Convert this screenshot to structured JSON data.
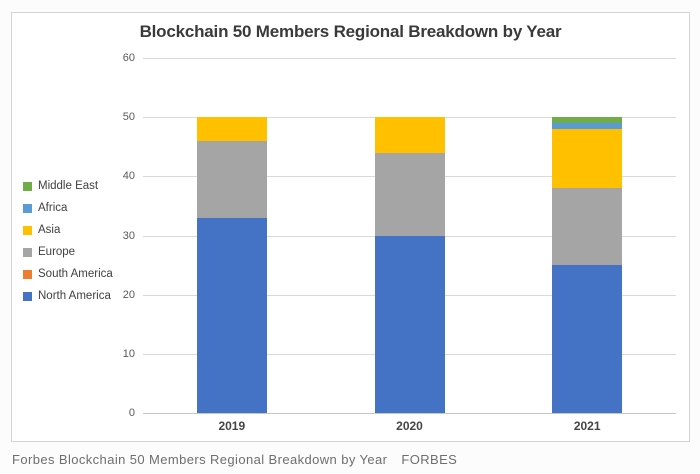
{
  "caption": {
    "text": "Forbes Blockchain 50 Members Regional Breakdown by Year",
    "source": "FORBES"
  },
  "chart_data": {
    "type": "bar",
    "variant": "stacked",
    "title": "Blockchain 50 Members Regional Breakdown by Year",
    "categories": [
      "2019",
      "2020",
      "2021"
    ],
    "series": [
      {
        "name": "North America",
        "color": "#4472C4",
        "values": [
          33,
          30,
          25
        ]
      },
      {
        "name": "South America",
        "color": "#ED7D31",
        "values": [
          0,
          0,
          0
        ]
      },
      {
        "name": "Europe",
        "color": "#A5A5A5",
        "values": [
          13,
          14,
          13
        ]
      },
      {
        "name": "Asia",
        "color": "#FFC000",
        "values": [
          4,
          6,
          10
        ]
      },
      {
        "name": "Africa",
        "color": "#5B9BD5",
        "values": [
          0,
          0,
          1
        ]
      },
      {
        "name": "Middle East",
        "color": "#70AD47",
        "values": [
          0,
          0,
          1
        ]
      }
    ],
    "totals_per_category": [
      50,
      50,
      50
    ],
    "ylim": [
      0,
      60
    ],
    "yticks": [
      0,
      10,
      20,
      30,
      40,
      50,
      60
    ],
    "grid": true,
    "legend_position": "left",
    "legend_order_top_to_bottom": [
      "Middle East",
      "Africa",
      "Asia",
      "Europe",
      "South America",
      "North America"
    ]
  }
}
